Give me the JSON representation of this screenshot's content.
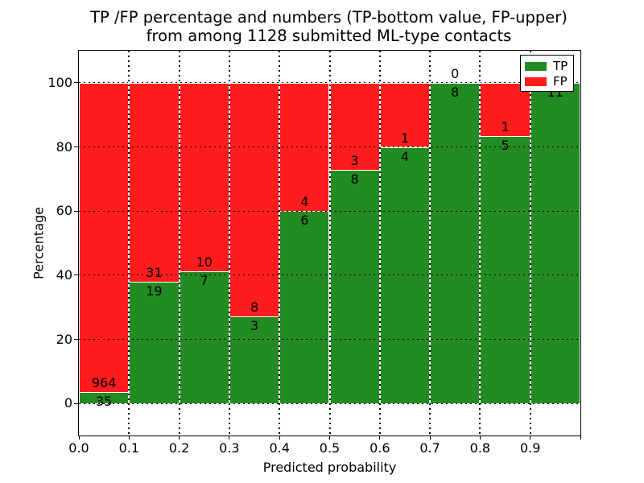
{
  "figure": {
    "title_line1": "TP /FP percentage and numbers (TP-bottom value, FP-upper)",
    "title_line2": "from among 1128 submitted ML-type contacts",
    "xlabel": "Predicted probability",
    "ylabel": "Percentage"
  },
  "legend": {
    "position": "upper-right",
    "items": [
      {
        "label": "TP",
        "color": "#228b22"
      },
      {
        "label": "FP",
        "color": "#ff1c1c"
      }
    ]
  },
  "chart_data": {
    "type": "bar",
    "stacked": true,
    "title": "TP /FP percentage and numbers (TP-bottom value, FP-upper)\nfrom among 1128 submitted ML-type contacts",
    "total_contacts": 1128,
    "xlabel": "Predicted probability",
    "ylabel": "Percentage",
    "xlim": [
      0.0,
      1.0
    ],
    "ylim": [
      -10,
      110
    ],
    "grid": true,
    "xticks": [
      "0.0",
      "0.1",
      "0.2",
      "0.3",
      "0.4",
      "0.5",
      "0.6",
      "0.7",
      "0.8",
      "0.9"
    ],
    "yticks": [
      0,
      20,
      40,
      60,
      80,
      100
    ],
    "bin_width": 0.1,
    "bin_start": [
      0.0,
      0.1,
      0.2,
      0.3,
      0.4,
      0.5,
      0.6,
      0.7,
      0.8,
      0.9
    ],
    "series": [
      {
        "name": "TP",
        "color": "#228b22",
        "counts": [
          35,
          19,
          7,
          3,
          6,
          8,
          4,
          8,
          5,
          11
        ],
        "percent": [
          3.5,
          38.0,
          41.18,
          27.27,
          60.0,
          72.73,
          80.0,
          100.0,
          83.33,
          100.0
        ]
      },
      {
        "name": "FP",
        "color": "#ff1c1c",
        "counts": [
          964,
          31,
          10,
          8,
          4,
          3,
          1,
          0,
          1,
          0
        ],
        "percent": [
          96.5,
          62.0,
          58.82,
          72.73,
          40.0,
          27.27,
          20.0,
          0.0,
          16.67,
          0.0
        ]
      }
    ]
  }
}
